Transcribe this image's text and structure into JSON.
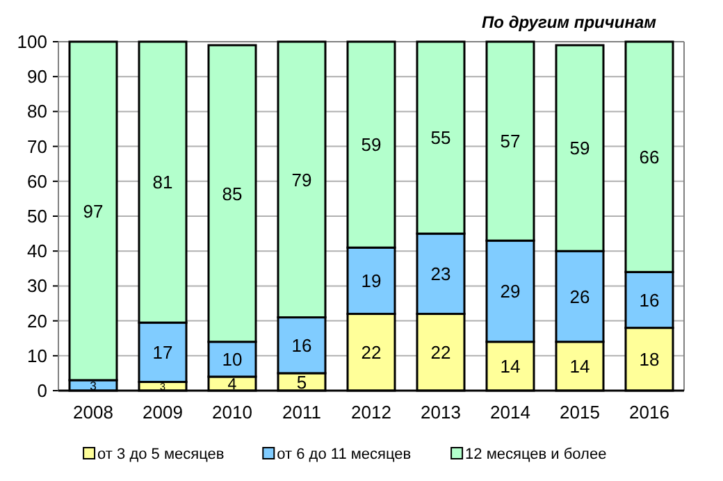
{
  "chart_data": {
    "type": "bar",
    "title": "По другим причинам",
    "stacked": true,
    "data_labels": true,
    "grid": "y",
    "legend": "bottom",
    "categories": [
      "2008",
      "2009",
      "2010",
      "2011",
      "2012",
      "2013",
      "2014",
      "2015",
      "2016"
    ],
    "ylim": [
      0,
      100
    ],
    "yticks": [
      0,
      10,
      20,
      30,
      40,
      50,
      60,
      70,
      80,
      90,
      100
    ],
    "series": [
      {
        "name": "от 3 до 5 месяцев",
        "color": "#ffff99",
        "values": [
          null,
          2.5,
          4,
          5,
          22,
          22,
          14,
          14,
          18
        ],
        "value_labels": [
          null,
          "3",
          "4",
          "5",
          "22",
          "22",
          "14",
          "14",
          "18"
        ]
      },
      {
        "name": "от 6 до 11 месяцев",
        "color": "#80ccff",
        "values": [
          3,
          17,
          10,
          16,
          19,
          23,
          29,
          26,
          16
        ]
      },
      {
        "name": "12 месяцев и более",
        "color": "#b3ffcc",
        "values": [
          97,
          80.5,
          85,
          79,
          59,
          55,
          57,
          59,
          66
        ],
        "value_labels": [
          "97",
          "81",
          "85",
          "79",
          "59",
          "55",
          "57",
          "59",
          "66"
        ]
      }
    ]
  }
}
